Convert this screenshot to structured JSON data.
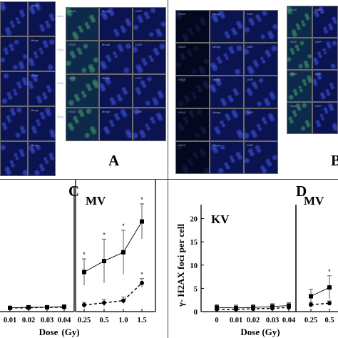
{
  "image_panels": {
    "letters": [
      "A",
      "B"
    ],
    "channel_labels": [
      "Merge",
      "DAPI",
      "H2AX"
    ],
    "row_labels": [
      "0cGy",
      "1cGy",
      "2cGy",
      "3cGy",
      "4cGy"
    ]
  },
  "chart_data": [
    {
      "panel": "",
      "type": "line",
      "title": "",
      "categories": [
        "0.01",
        "0.02",
        "0.03",
        "0.04"
      ],
      "series": [
        {
          "name": "",
          "style": "solid-square",
          "values": [
            0.6,
            0.7,
            0.7,
            0.8
          ]
        },
        {
          "name": "",
          "style": "dashed-circle",
          "values": [
            0.6,
            0.6,
            0.7,
            0.7
          ]
        }
      ],
      "xlabel": "Dose",
      "ylim": [
        0,
        20
      ]
    },
    {
      "panel": "C",
      "type": "line",
      "title": "MV",
      "categories": [
        "0.25",
        "0.5",
        "1.0",
        "1.5"
      ],
      "series": [
        {
          "name": "",
          "style": "solid-square",
          "values": [
            9,
            11.5,
            13.5,
            20.5
          ],
          "errors": [
            3,
            5,
            5,
            4
          ],
          "significance": [
            "*",
            "*",
            "*",
            "*"
          ]
        },
        {
          "name": "",
          "style": "dashed-circle",
          "values": [
            1.5,
            2.0,
            2.5,
            6.5
          ],
          "errors": [
            0.6,
            0.8,
            0.8,
            1.0
          ],
          "significance": [
            "",
            "",
            "",
            "*"
          ]
        }
      ],
      "xlabel": "(Gy)",
      "ylim": [
        0,
        30
      ]
    },
    {
      "panel": "D",
      "type": "line",
      "title": "KV",
      "categories": [
        "0",
        "0.01",
        "0.02",
        "0.03",
        "0.04"
      ],
      "series": [
        {
          "name": "",
          "style": "solid-square",
          "values": [
            0.9,
            0.8,
            0.9,
            1.1,
            1.3
          ],
          "errors": [
            0.6,
            0.6,
            0.6,
            0.6,
            0.6
          ]
        },
        {
          "name": "",
          "style": "dashed-circle",
          "values": [
            0.5,
            0.5,
            0.6,
            0.7,
            0.9
          ],
          "errors": [
            0.4,
            0.4,
            0.4,
            0.4,
            0.4
          ]
        }
      ],
      "xlabel": "Dose   (Gy)",
      "ylabel": "γ- H2AX foci per cell",
      "yticks": [
        0,
        5,
        10,
        15,
        20
      ],
      "ylim": [
        0,
        23
      ]
    },
    {
      "panel": "D",
      "type": "line",
      "title": "MV",
      "categories": [
        "0.25",
        "0.5"
      ],
      "series": [
        {
          "name": "",
          "style": "solid-square",
          "values": [
            3.3,
            5.2
          ],
          "errors": [
            1.5,
            2.5
          ],
          "significance": [
            "",
            "*"
          ]
        },
        {
          "name": "",
          "style": "dashed-circle",
          "values": [
            1.5,
            1.8
          ],
          "errors": [
            0.5,
            0.5
          ]
        }
      ],
      "xlabel": "",
      "ylim": [
        0,
        23
      ]
    }
  ]
}
